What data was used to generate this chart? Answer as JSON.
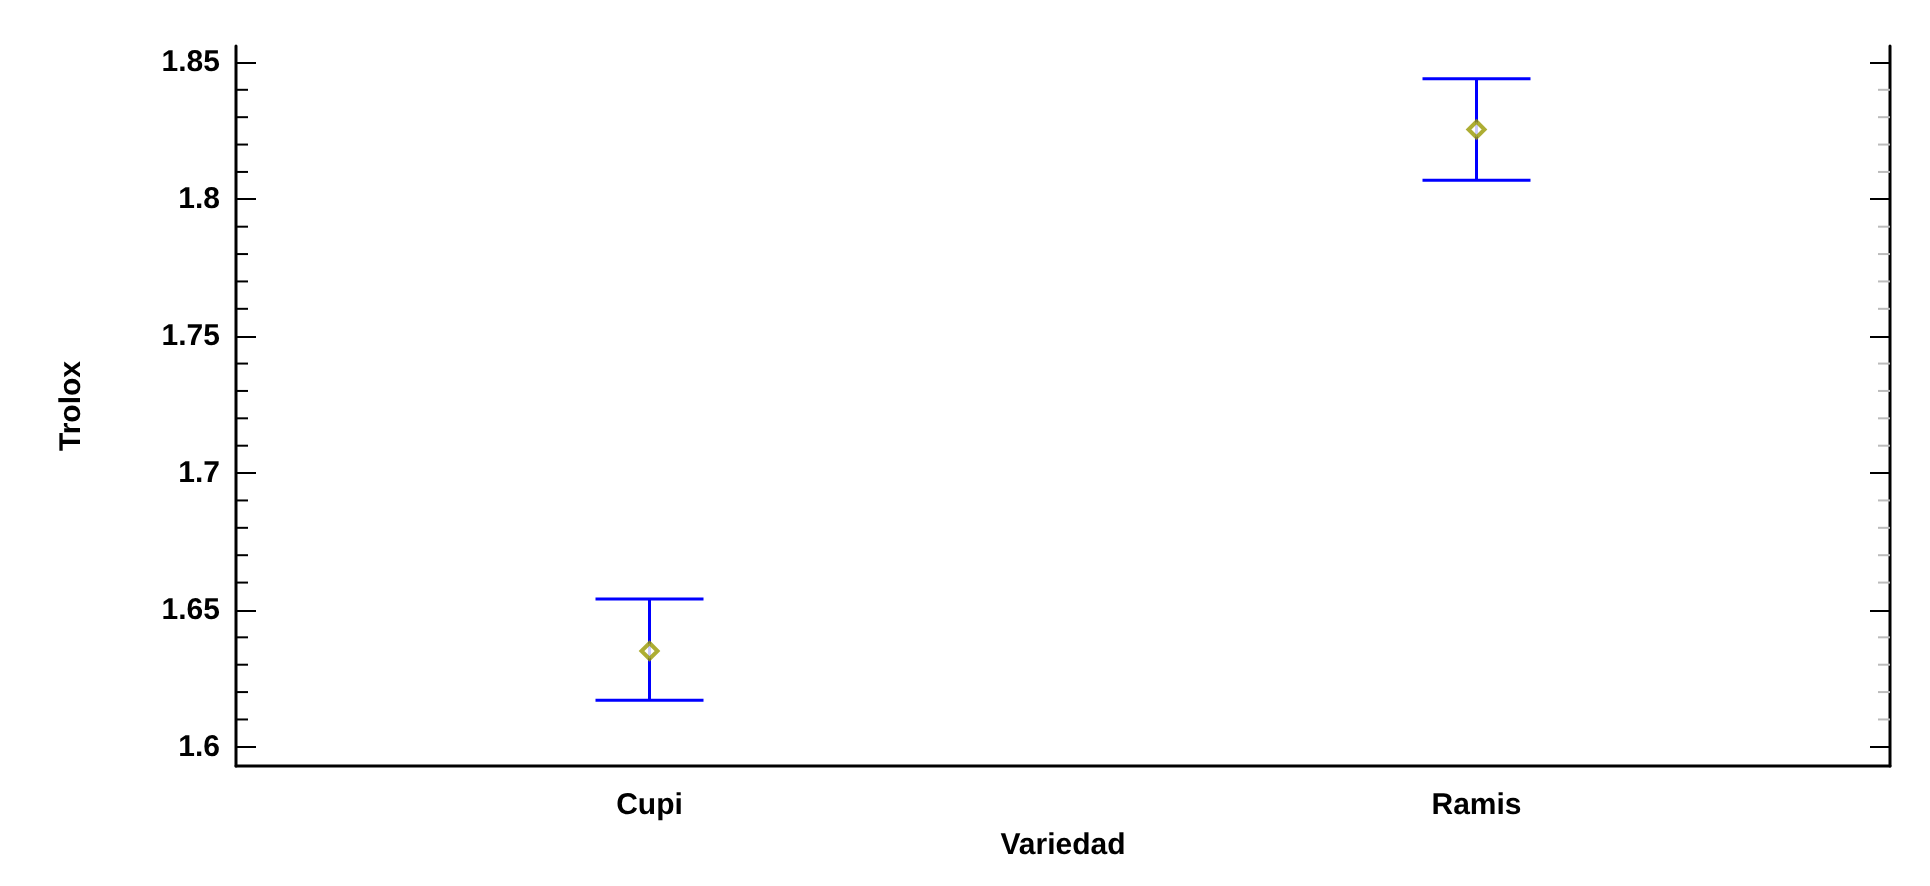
{
  "chart_data": {
    "type": "scatter",
    "xlabel": "Variedad",
    "ylabel": "Trolox",
    "categories": [
      "Cupi",
      "Ramis"
    ],
    "color": "#0000ff",
    "colors": [
      "#999900",
      "#999900"
    ],
    "values": [
      1.635,
      1.8255
    ],
    "errors": [
      [
        1.617,
        1.654
      ],
      [
        1.807,
        1.844
      ]
    ],
    "ylim": [
      1.593,
      1.856
    ],
    "yticks": [
      1.6,
      1.65,
      1.7,
      1.75,
      1.8,
      1.85
    ],
    "marker": "diamond",
    "grid": false
  }
}
